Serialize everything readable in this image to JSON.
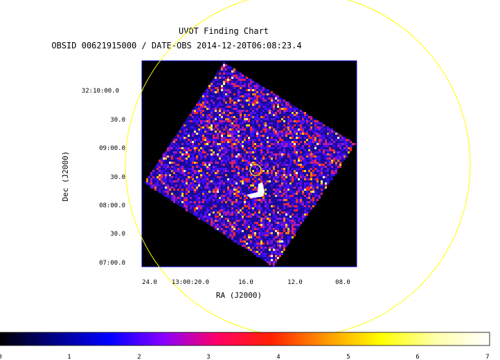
{
  "title": "UVOT Finding Chart",
  "subtitle": "OBSID 00621915000 / DATE-OBS 2014-12-20T06:08:23.4",
  "x_axis": {
    "label": "RA (J2000)",
    "ticks": [
      "24.0",
      "13:00:20.0",
      "16.0",
      "12.0",
      "08.0"
    ]
  },
  "y_axis": {
    "label": "Dec (J2000)",
    "ticks": [
      "32:10:00.0",
      "30.0",
      "09:00.0",
      "30.0",
      "08:00.0",
      "30.0",
      "07:00.0"
    ]
  },
  "colorbar": {
    "ticks": [
      "0",
      "1",
      "2",
      "3",
      "4",
      "5",
      "6",
      "7"
    ],
    "min": 0,
    "max": 7,
    "colormap": [
      "#000000",
      "#000088",
      "#0000ff",
      "#8800ff",
      "#ff0066",
      "#ff2200",
      "#ff9900",
      "#ffff00",
      "#ffffaa",
      "#ffffff"
    ]
  },
  "overlays": {
    "circle_color": "#ffff00",
    "frame_color": "#0000cc",
    "background": "#000000"
  }
}
